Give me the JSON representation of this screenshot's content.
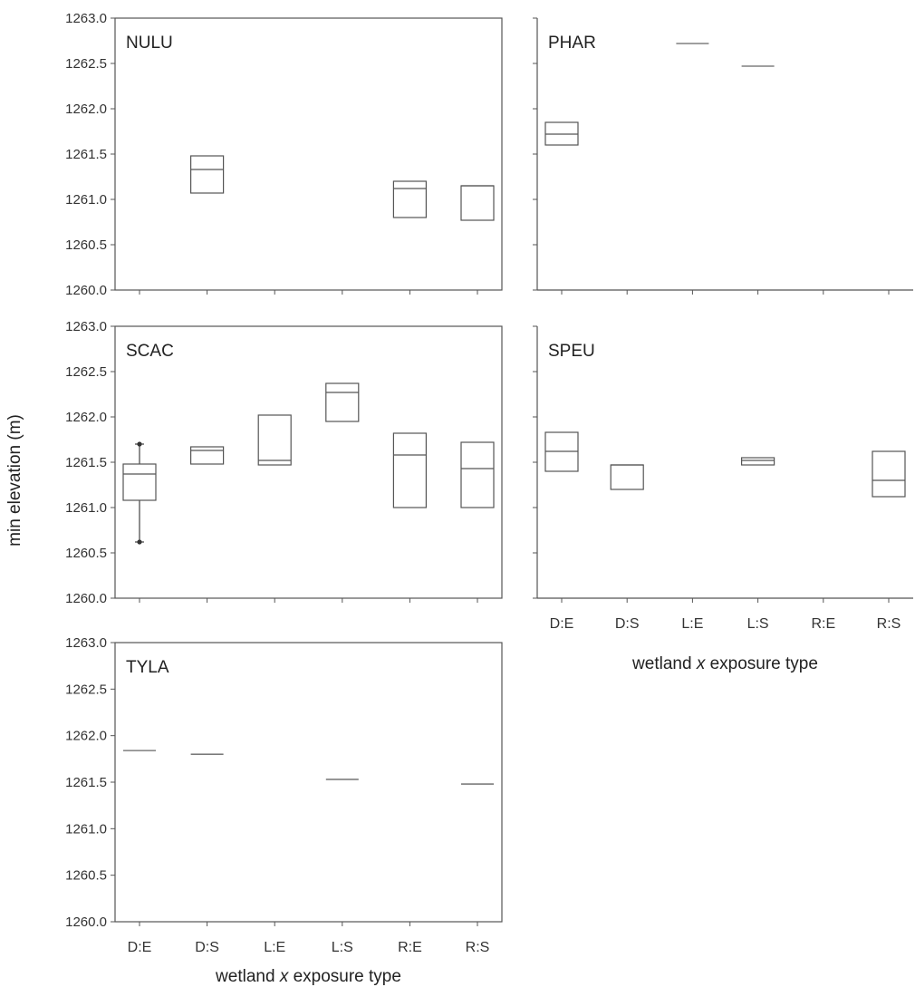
{
  "figure": {
    "ylabel": "min elevation (m)",
    "xlabel_parts": [
      "wetland ",
      "x",
      " exposure type"
    ]
  },
  "chart_data": [
    {
      "type": "box",
      "title": "NULU",
      "categories": [
        "D:E",
        "D:S",
        "L:E",
        "L:S",
        "R:E",
        "R:S"
      ],
      "ylim": [
        1260.0,
        1263.0
      ],
      "yticks": [
        "1260.0",
        "1260.5",
        "1261.0",
        "1261.5",
        "1262.0",
        "1262.5",
        "1263.0"
      ],
      "boxes": [
        {
          "category": "D:S",
          "q1": 1261.07,
          "median": 1261.33,
          "q3": 1261.48
        },
        {
          "category": "R:E",
          "q1": 1260.8,
          "median": 1261.12,
          "q3": 1261.2
        },
        {
          "category": "R:S",
          "q1": 1260.77,
          "median": 1261.15,
          "q3": 1261.15
        }
      ]
    },
    {
      "type": "box",
      "title": "PHAR",
      "categories": [
        "D:E",
        "D:S",
        "L:E",
        "L:S",
        "R:E",
        "R:S"
      ],
      "ylim": [
        1260.0,
        1263.0
      ],
      "boxes": [
        {
          "category": "D:E",
          "q1": 1261.6,
          "median": 1261.72,
          "q3": 1261.85
        },
        {
          "category": "L:E",
          "q1": 1262.72,
          "median": 1262.72,
          "q3": 1262.72
        },
        {
          "category": "L:S",
          "q1": 1262.47,
          "median": 1262.47,
          "q3": 1262.47
        }
      ]
    },
    {
      "type": "box",
      "title": "SCAC",
      "categories": [
        "D:E",
        "D:S",
        "L:E",
        "L:S",
        "R:E",
        "R:S"
      ],
      "ylim": [
        1260.0,
        1263.0
      ],
      "yticks": [
        "1260.0",
        "1260.5",
        "1261.0",
        "1261.5",
        "1262.0",
        "1262.5",
        "1263.0"
      ],
      "boxes": [
        {
          "category": "D:E",
          "q1": 1261.08,
          "median": 1261.37,
          "q3": 1261.48,
          "whisker_low": 1260.62,
          "whisker_high": 1261.7
        },
        {
          "category": "D:S",
          "q1": 1261.48,
          "median": 1261.63,
          "q3": 1261.67
        },
        {
          "category": "L:E",
          "q1": 1261.47,
          "median": 1261.52,
          "q3": 1262.02
        },
        {
          "category": "L:S",
          "q1": 1261.95,
          "median": 1262.27,
          "q3": 1262.37
        },
        {
          "category": "R:E",
          "q1": 1261.0,
          "median": 1261.58,
          "q3": 1261.82
        },
        {
          "category": "R:S",
          "q1": 1261.0,
          "median": 1261.43,
          "q3": 1261.72
        }
      ]
    },
    {
      "type": "box",
      "title": "SPEU",
      "categories": [
        "D:E",
        "D:S",
        "L:E",
        "L:S",
        "R:E",
        "R:S"
      ],
      "ylim": [
        1260.0,
        1263.0
      ],
      "boxes": [
        {
          "category": "D:E",
          "q1": 1261.4,
          "median": 1261.62,
          "q3": 1261.83
        },
        {
          "category": "D:S",
          "q1": 1261.2,
          "median": 1261.47,
          "q3": 1261.47
        },
        {
          "category": "L:S",
          "q1": 1261.47,
          "median": 1261.52,
          "q3": 1261.55
        },
        {
          "category": "R:S",
          "q1": 1261.12,
          "median": 1261.3,
          "q3": 1261.62
        }
      ]
    },
    {
      "type": "box",
      "title": "TYLA",
      "categories": [
        "D:E",
        "D:S",
        "L:E",
        "L:S",
        "R:E",
        "R:S"
      ],
      "ylim": [
        1260.0,
        1263.0
      ],
      "yticks": [
        "1260.0",
        "1260.5",
        "1261.0",
        "1261.5",
        "1262.0",
        "1262.5",
        "1263.0"
      ],
      "boxes": [
        {
          "category": "D:E",
          "q1": 1261.84,
          "median": 1261.84,
          "q3": 1261.84
        },
        {
          "category": "D:S",
          "q1": 1261.8,
          "median": 1261.8,
          "q3": 1261.8
        },
        {
          "category": "L:S",
          "q1": 1261.53,
          "median": 1261.53,
          "q3": 1261.53
        },
        {
          "category": "R:S",
          "q1": 1261.48,
          "median": 1261.48,
          "q3": 1261.48
        }
      ]
    }
  ]
}
